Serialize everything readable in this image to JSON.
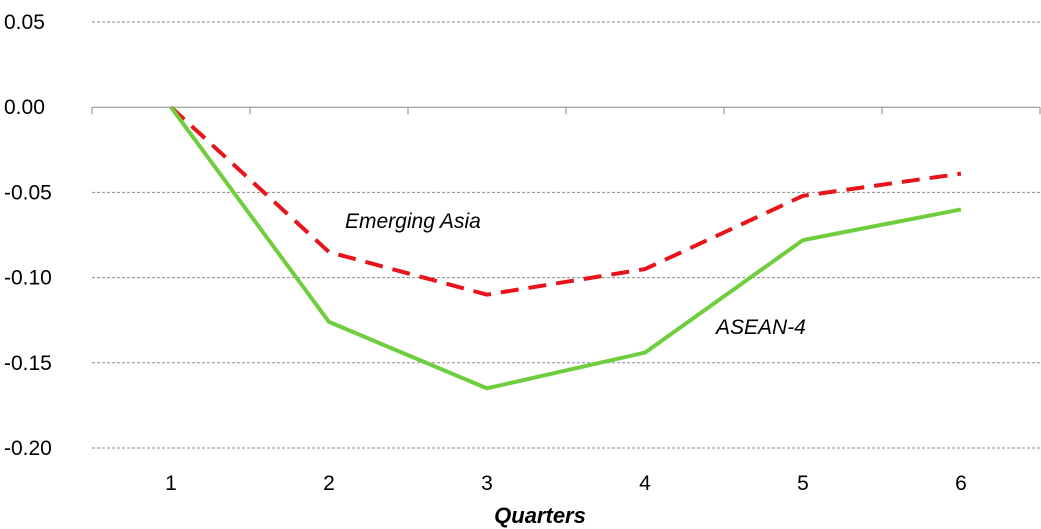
{
  "chart_data": {
    "type": "line",
    "title": "",
    "xlabel": "Quarters",
    "ylabel": "",
    "categories": [
      "1",
      "2",
      "3",
      "4",
      "5",
      "6"
    ],
    "ylim": [
      -0.2,
      0.05
    ],
    "yticks": [
      "0.05",
      "0.00",
      "-0.05",
      "-0.10",
      "-0.15",
      "-0.20"
    ],
    "grid": "horizontal dashed",
    "series": [
      {
        "name": "Emerging Asia",
        "values": [
          0.0,
          -0.085,
          -0.11,
          -0.095,
          -0.052,
          -0.039
        ],
        "color": "#e8141b",
        "style": "dashed"
      },
      {
        "name": "ASEAN-4",
        "values": [
          0.0,
          -0.126,
          -0.165,
          -0.144,
          -0.078,
          -0.06
        ],
        "color": "#6fce3d",
        "style": "solid"
      }
    ]
  }
}
